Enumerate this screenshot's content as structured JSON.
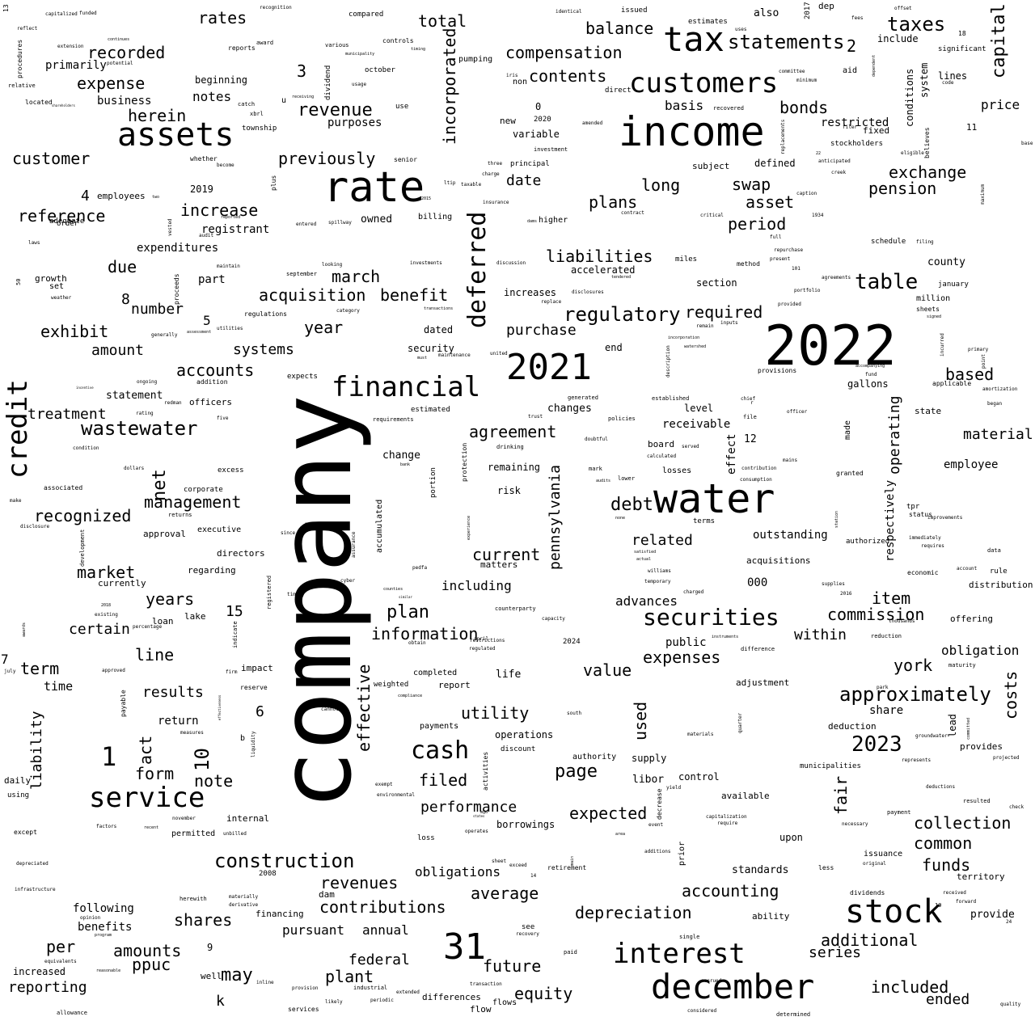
{
  "words": [
    "company",
    "2022",
    "income",
    "rate",
    "water",
    "assets",
    "tax",
    "customers",
    "2021",
    "financial",
    "december",
    "interest",
    "stock",
    "service",
    "31",
    "credit",
    "deferred",
    "securities",
    "wastewater",
    "cash",
    "statements",
    "construction",
    "taxes",
    "regulatory",
    "table",
    "approximately",
    "capital",
    "2023",
    "incorporated",
    "total",
    "compensation",
    "contents",
    "balance",
    "plans",
    "revenue",
    "recorded",
    "previously",
    "customer",
    "reference",
    "acquisition",
    "benefit",
    "liabilities",
    "exchange",
    "pension",
    "bonds",
    "swap",
    "asset",
    "period",
    "increase",
    "expense",
    "herein",
    "rates",
    "exhibit",
    "number",
    "amount",
    "accounts",
    "systems",
    "year",
    "march",
    "purchase",
    "agreement",
    "debt",
    "related",
    "current",
    "pennsylvania",
    "management",
    "recognized",
    "market",
    "years",
    "certain",
    "line",
    "term",
    "liability",
    "results",
    "form",
    "note",
    "plan",
    "information",
    "expenses",
    "value",
    "commission",
    "item",
    "within",
    "york",
    "costs",
    "utility",
    "effective",
    "filed",
    "performance",
    "expected",
    "page",
    "collection",
    "common",
    "funds",
    "accounting",
    "depreciation",
    "additional",
    "included",
    "ended",
    "series",
    "future",
    "equity",
    "federal",
    "plant",
    "may",
    "ppuc",
    "amounts",
    "reporting",
    "shares",
    "contributions",
    "revenues",
    "average",
    "obligations",
    "pursuant",
    "annual",
    "benefits",
    "following",
    "per",
    "act",
    "net",
    "due",
    "treatment",
    "primarily",
    "business",
    "notes",
    "date",
    "long",
    "contents",
    "basis",
    "based",
    "operating",
    "material",
    "employee",
    "outstanding",
    "acquisitions",
    "advances",
    "public",
    "value",
    "obligation",
    "fair",
    "share",
    "used",
    "including",
    "remaining",
    "risk",
    "receivable",
    "required",
    "restricted",
    "price",
    "lines",
    "include",
    "conditions",
    "system",
    "significant",
    "fixed",
    "stockholders",
    "defined",
    "subject",
    "variable",
    "new",
    "purposes",
    "beginning",
    "employees",
    "registrant",
    "expenditures",
    "part",
    "statement",
    "officers",
    "directors",
    "regarding",
    "currently",
    "lake",
    "loan",
    "time",
    "return",
    "internal",
    "approval",
    "executive",
    "includes",
    "change",
    "changes",
    "level",
    "board",
    "losses",
    "terms",
    "authorized",
    "offering",
    "distribution",
    "economic",
    "adjustment",
    "deduction",
    "provides",
    "municipalities",
    "authority",
    "supply",
    "libor",
    "control",
    "available",
    "upon",
    "issuance",
    "standards",
    "territory",
    "dividends",
    "provide",
    "ability",
    "completed",
    "report",
    "life",
    "weighted",
    "payments",
    "operations",
    "discount",
    "borrowings",
    "loss",
    "dam",
    "flow",
    "flows",
    "differences",
    "annual",
    "financing",
    "well",
    "permitted",
    "increased",
    "k",
    "also",
    "dep",
    "fees",
    "issued",
    "october",
    "use",
    "pumping",
    "non",
    "direct",
    "amended",
    "investment",
    "principal",
    "senior",
    "insurance",
    "billing",
    "owned",
    "investments",
    "transactions",
    "discussion",
    "increases",
    "section",
    "accelerated",
    "end",
    "provisions",
    "gallons",
    "applicable",
    "state",
    "made",
    "county",
    "january",
    "million",
    "sheets",
    "schedule",
    "miles",
    "method",
    "entered",
    "held",
    "dated",
    "security",
    "maintenance",
    "expects",
    "estimated",
    "requirements",
    "trust",
    "policies",
    "generated",
    "established",
    "2019",
    "4",
    "8",
    "5",
    "3",
    "2",
    "0",
    "1",
    "10",
    "15",
    "6",
    "7",
    "9",
    "12",
    "11",
    "50",
    "2024",
    "2020",
    "2008",
    "2017",
    "000",
    "growth",
    "set",
    "adequate",
    "weather",
    "order",
    "township",
    "catch",
    "xbrl",
    "u",
    "whether",
    "become",
    "recovered",
    "uses",
    "estimates",
    "compared",
    "funded",
    "capitalized",
    "reflect",
    "procedures",
    "relative",
    "located",
    "shareholders",
    "continues",
    "extension",
    "potential",
    "award",
    "reports",
    "various",
    "recognition",
    "controls",
    "timing",
    "usage",
    "municipality",
    "dividend",
    "receiving",
    "iris",
    "2015",
    "plus",
    "ltip",
    "taxable",
    "charge",
    "three",
    "generally",
    "assessment",
    "utilities",
    "regulations",
    "category",
    "september",
    "looking",
    "proceeds",
    "maintain",
    "audit",
    "reported",
    "vested",
    "rating",
    "two",
    "laws",
    "incentive",
    "ongoing",
    "addition",
    "redman",
    "condition",
    "dollars",
    "associated",
    "make",
    "disclosure",
    "development",
    "existing",
    "2018",
    "percentage",
    "awards",
    "july",
    "approved",
    "firm",
    "impact",
    "reserve",
    "payable",
    "cannot",
    "measures",
    "effectiveness",
    "liquidity",
    "b",
    "registered",
    "indicate",
    "since",
    "timely",
    "counties",
    "similar",
    "pedfa",
    "cyber",
    "matters",
    "assurance",
    "experience",
    "protection",
    "portion",
    "bank",
    "drinking",
    "counterparty",
    "capacity",
    "obtain",
    "april",
    "restrictions",
    "regulated",
    "compliance",
    "south",
    "activities",
    "exempt",
    "environmental",
    "mgd",
    "states",
    "operates",
    "sheet",
    "exceed",
    "retirement",
    "main",
    "14",
    "see",
    "recovery",
    "paid",
    "transaction",
    "extended",
    "periodic",
    "industrial",
    "inline",
    "services",
    "likely",
    "provision",
    "materially",
    "derivative",
    "herewith",
    "opinion",
    "program",
    "equivalents",
    "reasonable",
    "allowance",
    "depreciated",
    "infrastructure",
    "factors",
    "recent",
    "november",
    "unbilled",
    "except",
    "using",
    "daily",
    "certain",
    "gross",
    "returns",
    "corporate",
    "excess",
    "five",
    "mark",
    "audits",
    "lower",
    "none",
    "satisfied",
    "actual",
    "williams",
    "temporary",
    "charged",
    "instruments",
    "difference",
    "capitalization",
    "require",
    "event",
    "area",
    "additions",
    "single",
    "accrued",
    "considered",
    "determined",
    "materials",
    "quarter",
    "projected",
    "represents",
    "groundwater",
    "thousands",
    "reduction",
    "maturity",
    "check",
    "resulted",
    "deductions",
    "payment",
    "necessary",
    "original",
    "less",
    "received",
    "forward",
    "quality",
    "24",
    "19",
    "tpr",
    "status",
    "improvements",
    "immediately",
    "requires",
    "data",
    "rule",
    "account",
    "2016",
    "supplies",
    "station",
    "park",
    "granted",
    "contribution",
    "consumption",
    "mains",
    "served",
    "calculated",
    "doubtful",
    "file",
    "chief",
    "officer",
    "r",
    "description",
    "watershed",
    "incorporation",
    "incurred",
    "primary",
    "point",
    "began",
    "amortization",
    "fund",
    "accompanying",
    "signed",
    "provided",
    "portfolio",
    "agreements",
    "101",
    "repurchase",
    "present",
    "full",
    "1934",
    "caption",
    "critical",
    "inputs",
    "remain",
    "tendered",
    "replace",
    "disclosures",
    "contract",
    "higher",
    "dams",
    "eligible",
    "believes",
    "filer",
    "anticipated",
    "creek",
    "22",
    "replacements",
    "minimum",
    "committee",
    "aid",
    "dependent",
    "offset",
    "18",
    "code",
    "base",
    "maximum",
    "filing",
    "13",
    "identical",
    "spillway",
    "full",
    "united",
    "must",
    "yield",
    "decrease",
    "prior",
    "lead",
    "committed",
    "respectively",
    "effect",
    "accumulated"
  ]
}
